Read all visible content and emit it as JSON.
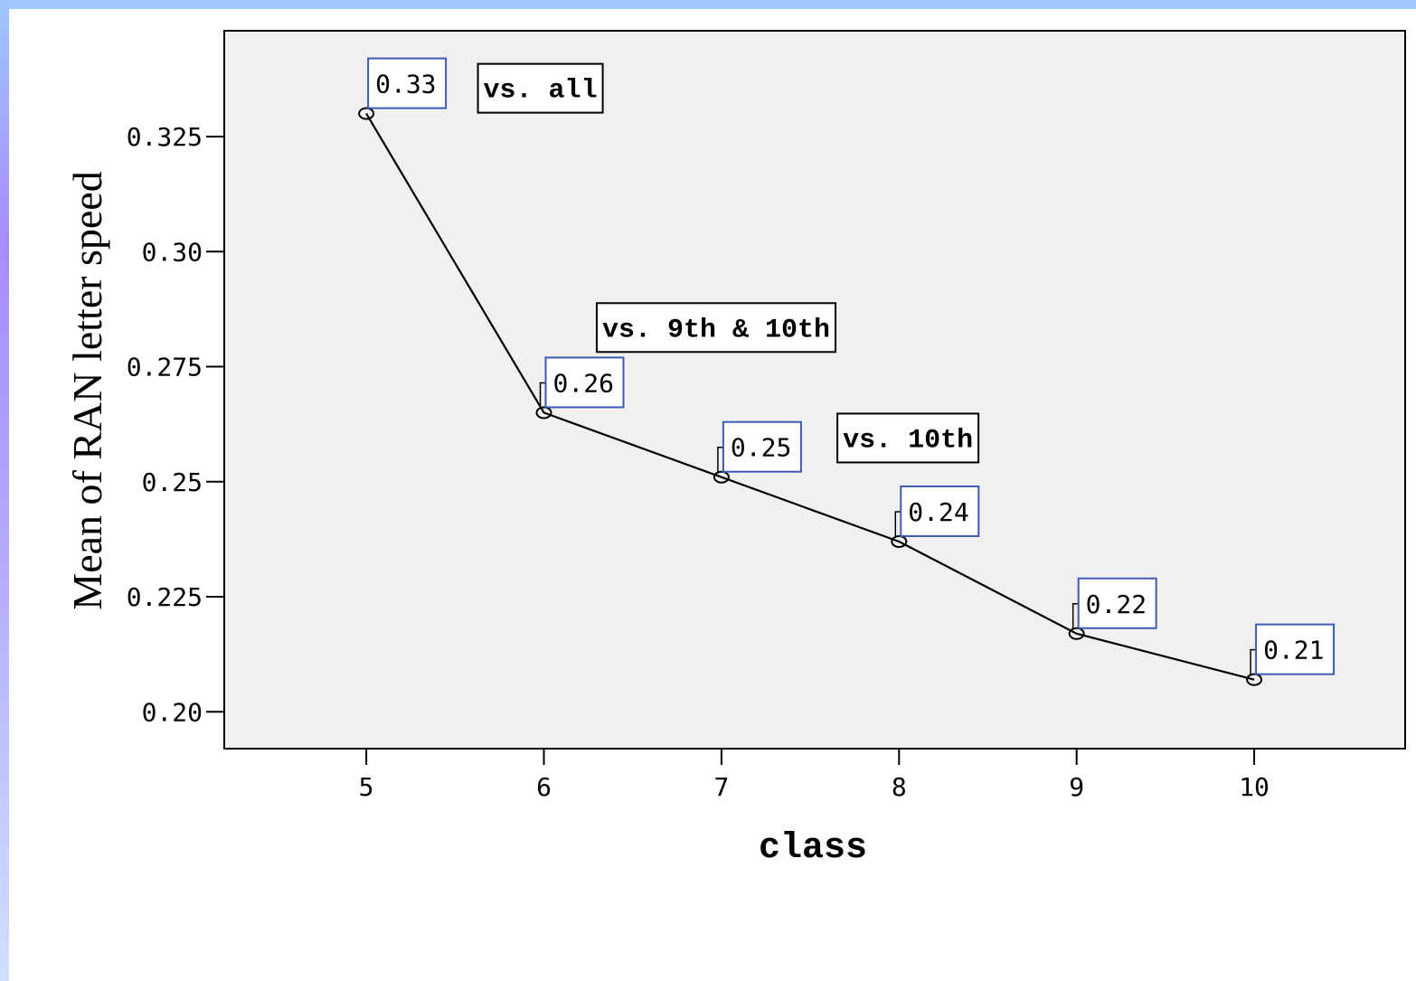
{
  "chart_data": {
    "type": "line",
    "x": [
      5,
      6,
      7,
      8,
      9,
      10
    ],
    "series": [
      {
        "values": [
          0.33,
          0.265,
          0.251,
          0.237,
          0.217,
          0.207
        ],
        "data_labels": [
          "0.33",
          "0.26",
          "0.25",
          "0.24",
          "0.22",
          "0.21"
        ]
      }
    ],
    "xlabel": "class",
    "ylabel": "Mean of RAN letter speed",
    "x_tick_labels": [
      "5",
      "6",
      "7",
      "8",
      "9",
      "10"
    ],
    "y_ticks": [
      0.2,
      0.225,
      0.25,
      0.275,
      0.3,
      0.325
    ],
    "y_tick_labels": [
      "0.20",
      "0.225",
      "0.25",
      "0.275",
      "0.30",
      "0.325"
    ],
    "xlim": [
      4.2,
      10.85
    ],
    "ylim": [
      0.192,
      0.348
    ],
    "grid": false,
    "colors": {
      "plot_background": "#f0f0f0",
      "line": "#000000",
      "label_box_border": "#3b5bb5"
    },
    "annotations": [
      {
        "text": "vs. all",
        "x": 5.98,
        "y": 0.3355
      },
      {
        "text": "vs. 9th & 10th",
        "x": 6.97,
        "y": 0.2835
      },
      {
        "text": "vs. 10th",
        "x": 8.05,
        "y": 0.2595
      }
    ]
  }
}
